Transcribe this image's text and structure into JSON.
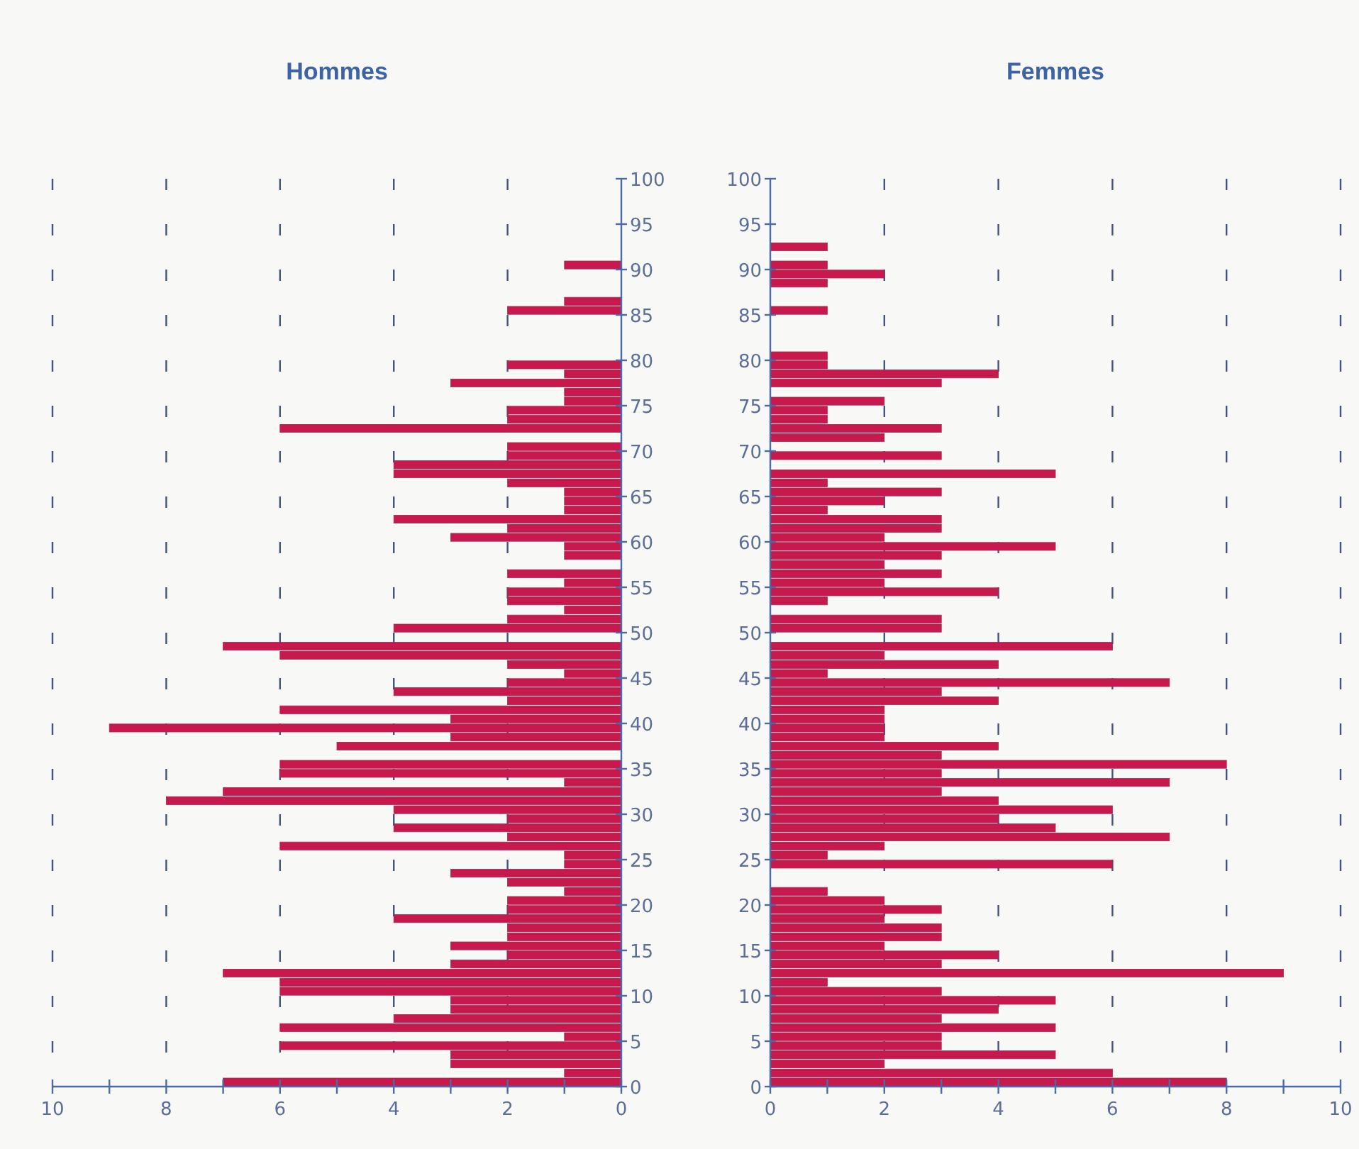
{
  "chart_data": [
    {
      "type": "bar",
      "orientation": "horizontal",
      "title": "Hommes",
      "color": "#c8194c",
      "grid": "x",
      "x": [
        0,
        1,
        2,
        3,
        4,
        5,
        6,
        7,
        8,
        9,
        10,
        11,
        12,
        13,
        14,
        15,
        16,
        17,
        18,
        19,
        20,
        21,
        22,
        23,
        24,
        25,
        26,
        27,
        28,
        29,
        30,
        31,
        32,
        33,
        34,
        35,
        36,
        37,
        38,
        39,
        40,
        41,
        42,
        43,
        44,
        45,
        46,
        47,
        48,
        49,
        50,
        51,
        52,
        53,
        54,
        55,
        56,
        57,
        58,
        59,
        60,
        61,
        62,
        63,
        64,
        65,
        66,
        67,
        68,
        69,
        70,
        71,
        72,
        73,
        74,
        75,
        76,
        77,
        78,
        79,
        80,
        81,
        82,
        83,
        84,
        85,
        86,
        87,
        88,
        89,
        90
      ],
      "values": [
        7,
        1,
        3,
        3,
        6,
        1,
        6,
        4,
        3,
        3,
        6,
        6,
        7,
        3,
        2,
        3,
        2,
        2,
        4,
        2,
        2,
        1,
        2,
        3,
        1,
        1,
        6,
        2,
        4,
        2,
        4,
        8,
        7,
        1,
        6,
        6,
        0,
        5,
        3,
        9,
        3,
        6,
        2,
        4,
        2,
        1,
        2,
        6,
        7,
        0,
        4,
        2,
        1,
        2,
        2,
        1,
        2,
        0,
        1,
        1,
        3,
        2,
        4,
        1,
        1,
        1,
        2,
        4,
        4,
        2,
        2,
        0,
        6,
        2,
        2,
        1,
        1,
        3,
        1,
        2,
        0,
        0,
        0,
        0,
        0,
        2,
        1,
        0,
        0,
        0,
        1
      ],
      "xlim": [
        10,
        0
      ],
      "xticks": [
        10,
        {
          "value": 9,
          "label": null
        },
        8,
        {
          "value": 7,
          "label": null
        },
        6,
        {
          "value": 5,
          "label": null
        },
        4,
        {
          "value": 3,
          "label": null
        },
        2,
        {
          "value": 1,
          "label": null
        },
        0
      ],
      "ylim": [
        0,
        100
      ],
      "yticks": [
        0,
        5,
        10,
        15,
        20,
        25,
        30,
        35,
        40,
        45,
        50,
        55,
        60,
        65,
        70,
        75,
        80,
        85,
        90,
        95,
        100
      ]
    },
    {
      "type": "bar",
      "orientation": "horizontal",
      "title": "Femmes",
      "color": "#c8194c",
      "grid": "x",
      "x": [
        0,
        1,
        2,
        3,
        4,
        5,
        6,
        7,
        8,
        9,
        10,
        11,
        12,
        13,
        14,
        15,
        16,
        17,
        18,
        19,
        20,
        21,
        22,
        23,
        24,
        25,
        26,
        27,
        28,
        29,
        30,
        31,
        32,
        33,
        34,
        35,
        36,
        37,
        38,
        39,
        40,
        41,
        42,
        43,
        44,
        45,
        46,
        47,
        48,
        49,
        50,
        51,
        52,
        53,
        54,
        55,
        56,
        57,
        58,
        59,
        60,
        61,
        62,
        63,
        64,
        65,
        66,
        67,
        68,
        69,
        70,
        71,
        72,
        73,
        74,
        75,
        76,
        77,
        78,
        79,
        80,
        81,
        82,
        83,
        84,
        85,
        86,
        87,
        88,
        89,
        90,
        91,
        92
      ],
      "values": [
        8,
        6,
        2,
        5,
        3,
        3,
        5,
        3,
        4,
        5,
        3,
        1,
        9,
        3,
        4,
        2,
        3,
        3,
        2,
        3,
        2,
        1,
        0,
        0,
        6,
        1,
        2,
        7,
        5,
        4,
        6,
        4,
        3,
        7,
        3,
        8,
        3,
        4,
        2,
        2,
        2,
        2,
        4,
        3,
        7,
        1,
        4,
        2,
        6,
        0,
        3,
        3,
        0,
        1,
        4,
        2,
        3,
        2,
        3,
        5,
        2,
        3,
        3,
        1,
        2,
        3,
        1,
        5,
        0,
        3,
        0,
        2,
        3,
        1,
        1,
        2,
        0,
        3,
        4,
        1,
        1,
        0,
        0,
        0,
        0,
        1,
        0,
        0,
        1,
        2,
        1,
        0,
        1
      ],
      "xlim": [
        0,
        10
      ],
      "xticks": [
        0,
        {
          "value": 1,
          "label": null
        },
        2,
        {
          "value": 3,
          "label": null
        },
        4,
        {
          "value": 5,
          "label": null
        },
        6,
        {
          "value": 7,
          "label": null
        },
        8,
        {
          "value": 9,
          "label": null
        },
        10
      ],
      "ylim": [
        0,
        100
      ],
      "yticks": [
        0,
        5,
        10,
        15,
        20,
        25,
        30,
        35,
        40,
        45,
        50,
        55,
        60,
        65,
        70,
        75,
        80,
        85,
        90,
        95,
        100
      ]
    }
  ]
}
